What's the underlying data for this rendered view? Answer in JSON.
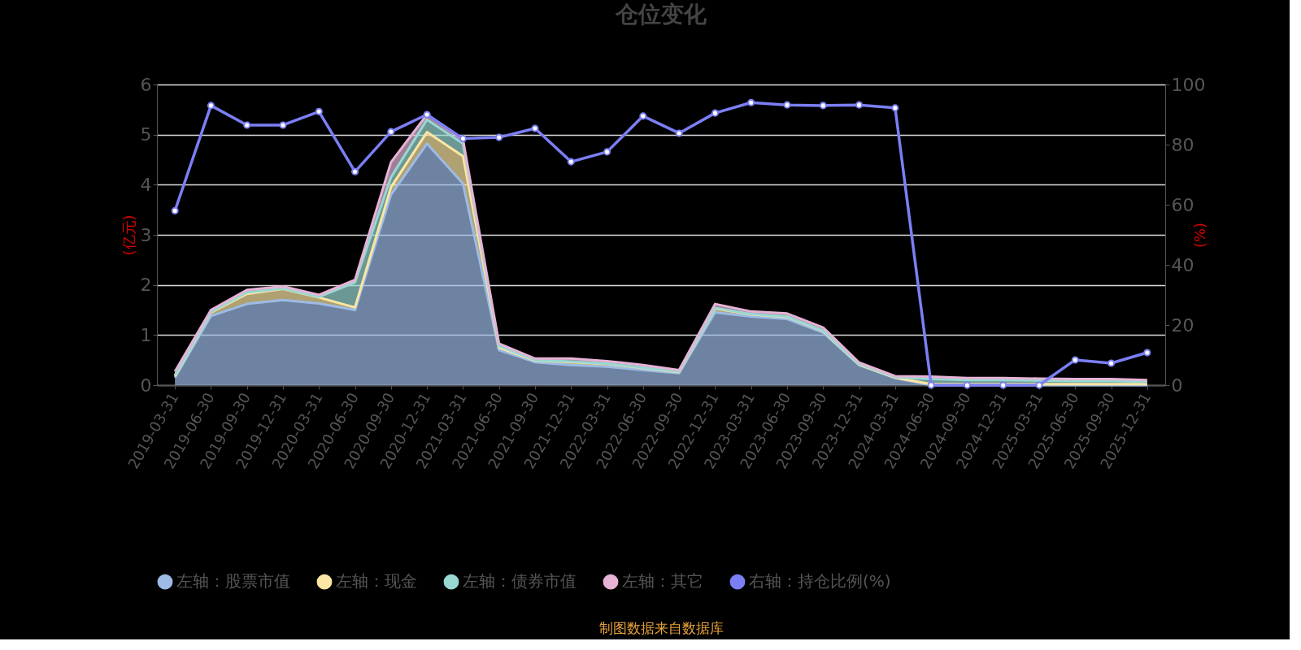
{
  "chart_data": {
    "type": "area",
    "title": "仓位变化",
    "ylabel": "(亿元)",
    "y2label": "(%)",
    "stacked": true,
    "grid": "y",
    "legend": "bottom",
    "line_style": "solid",
    "categories": [
      "2019-03-31",
      "2019-06-30",
      "2019-09-30",
      "2019-12-31",
      "2020-03-31",
      "2020-06-30",
      "2020-09-30",
      "2020-12-31",
      "2021-03-31",
      "2021-06-30",
      "2021-09-30",
      "2021-12-31",
      "2022-03-31",
      "2022-06-30",
      "2022-09-30",
      "2022-12-31",
      "2023-03-31",
      "2023-06-30",
      "2023-09-30",
      "2023-12-31",
      "2024-03-31",
      "2024-06-30",
      "2024-09-30",
      "2024-12-31",
      "2025-03-31",
      "2025-06-30",
      "2025-09-30",
      "2025-12-31"
    ],
    "ylim": [
      0,
      6
    ],
    "yticks": [
      0,
      1,
      2,
      3,
      4,
      5,
      6
    ],
    "y2lim": [
      0,
      100
    ],
    "y2ticks": [
      0,
      20,
      40,
      60,
      80,
      100
    ],
    "series": [
      {
        "name": "左轴：股票市值",
        "color": "#9dbbe6",
        "values": [
          0.15,
          1.38,
          1.62,
          1.7,
          1.63,
          1.5,
          3.8,
          4.82,
          4.02,
          0.7,
          0.46,
          0.4,
          0.37,
          0.3,
          0.24,
          1.45,
          1.37,
          1.32,
          1.05,
          0.4,
          0.14,
          0,
          0,
          0,
          0,
          0,
          0,
          0
        ]
      },
      {
        "name": "左轴：现金",
        "color": "#fbe6a4",
        "values": [
          0.03,
          0.07,
          0.2,
          0.22,
          0.12,
          0.05,
          0.15,
          0.23,
          0.55,
          0.05,
          0.03,
          0.06,
          0.05,
          0.04,
          0.02,
          0.08,
          0.04,
          0.04,
          0.03,
          0.01,
          0.01,
          0.02,
          0.02,
          0.02,
          0.02,
          0.02,
          0.02,
          0.02
        ]
      },
      {
        "name": "左轴：债券市值",
        "color": "#98d8d3",
        "values": [
          0.02,
          0.01,
          0.03,
          0.01,
          0.01,
          0.5,
          0.2,
          0.25,
          0.25,
          0.03,
          0.01,
          0.01,
          0.01,
          0.01,
          0.01,
          0.01,
          0.01,
          0.01,
          0.01,
          0.01,
          0.01,
          0.1,
          0.08,
          0.08,
          0.07,
          0.06,
          0.06,
          0.05
        ]
      },
      {
        "name": "左轴：其它",
        "color": "#e6b3d6",
        "values": [
          0.07,
          0.04,
          0.05,
          0.04,
          0.04,
          0.05,
          0.3,
          0.1,
          0.08,
          0.05,
          0.03,
          0.06,
          0.05,
          0.05,
          0.03,
          0.08,
          0.05,
          0.06,
          0.06,
          0.03,
          0.02,
          0.05,
          0.04,
          0.04,
          0.04,
          0.04,
          0.04,
          0.03
        ]
      },
      {
        "name": "右轴：持仓比例(%)",
        "color": "#7b7ff5",
        "type": "line",
        "axis": "y2",
        "marker": "circle",
        "values": [
          58,
          93,
          86.5,
          86.5,
          91,
          71,
          84.3,
          90,
          82,
          82.4,
          85.4,
          74.3,
          77.6,
          89.5,
          83.8,
          90.5,
          94,
          93.2,
          93,
          93.2,
          92.2,
          0,
          0,
          0,
          0,
          8.4,
          7.3,
          10.8
        ]
      }
    ],
    "annotations": [
      "制图数据来自数据库"
    ]
  }
}
